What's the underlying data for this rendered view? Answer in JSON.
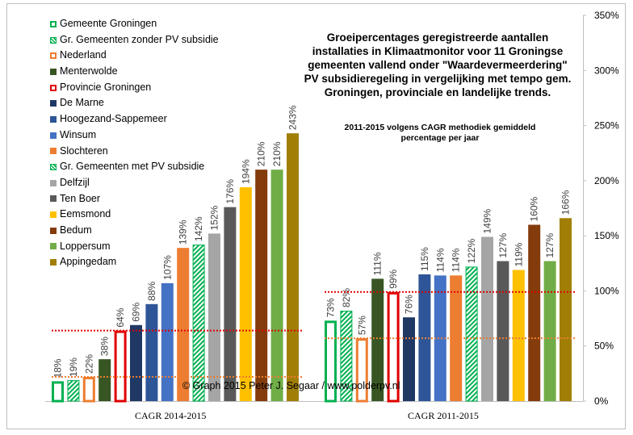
{
  "chart_data": {
    "type": "bar",
    "title": "Groeipercentages geregistreerde aantallen installaties in Klimaatmonitor voor 11 Groningse gemeenten vallend onder \"Waardevermeerdering\" PV subsidieregeling in vergelijking met tempo gem. Groningen, provinciale en landelijke trends.",
    "subtitle": "2011-2015 volgens CAGR methodiek gemiddeld percentage per jaar",
    "annotation": "© Graph 2015 Peter J. Segaar / www.polderpv.nl",
    "categories": [
      "CAGR 2014-2015",
      "CAGR 2011-2015"
    ],
    "yaxis": {
      "min": 0,
      "max": 350,
      "step": 50,
      "unit": "%",
      "position": "right"
    },
    "grid": false,
    "legend_position": "top-left",
    "series": [
      {
        "name": "Gemeente Groningen",
        "values": [
          18,
          73
        ],
        "color": "#00b050",
        "style": "outline"
      },
      {
        "name": "Gr. Gemeenten zonder PV subsidie",
        "values": [
          19,
          82
        ],
        "color": "#00b050",
        "style": "hatch"
      },
      {
        "name": "Nederland",
        "values": [
          22,
          57
        ],
        "color": "#ed7d31",
        "style": "outline"
      },
      {
        "name": "Menterwolde",
        "values": [
          38,
          111
        ],
        "color": "#375623",
        "style": "solid"
      },
      {
        "name": "Provincie Groningen",
        "values": [
          64,
          99
        ],
        "color": "#e00000",
        "style": "outline"
      },
      {
        "name": "De Marne",
        "values": [
          69,
          76
        ],
        "color": "#1f3864",
        "style": "solid"
      },
      {
        "name": "Hoogezand-Sappemeer",
        "values": [
          88,
          115
        ],
        "color": "#2e5597",
        "style": "solid"
      },
      {
        "name": "Winsum",
        "values": [
          107,
          114
        ],
        "color": "#4472c4",
        "style": "solid"
      },
      {
        "name": "Slochteren",
        "values": [
          139,
          114
        ],
        "color": "#ed7d31",
        "style": "solid"
      },
      {
        "name": "Gr. Gemeenten met PV subsidie",
        "values": [
          142,
          122
        ],
        "color": "#00b050",
        "style": "hatch"
      },
      {
        "name": "Delfzijl",
        "values": [
          152,
          149
        ],
        "color": "#a5a5a5",
        "style": "solid"
      },
      {
        "name": "Ten Boer",
        "values": [
          176,
          127
        ],
        "color": "#595959",
        "style": "solid"
      },
      {
        "name": "Eemsmond",
        "values": [
          194,
          119
        ],
        "color": "#ffc000",
        "style": "solid"
      },
      {
        "name": "Bedum",
        "values": [
          210,
          160
        ],
        "color": "#843c0c",
        "style": "solid"
      },
      {
        "name": "Loppersum",
        "values": [
          210,
          127
        ],
        "color": "#70ad47",
        "style": "solid"
      },
      {
        "name": "Appingedam",
        "values": [
          243,
          166
        ],
        "color": "#a17f07",
        "style": "solid"
      }
    ],
    "data_labels": [
      [
        "18%",
        "19%",
        "22%",
        "38%",
        "64%",
        "69%",
        "88%",
        "107%",
        "139%",
        "142%",
        "152%",
        "176%",
        "194%",
        "210%",
        "210%",
        "243%"
      ],
      [
        "73%",
        "82%",
        "57%",
        "111%",
        "99%",
        "76%",
        "115%",
        "114%",
        "114%",
        "122%",
        "149%",
        "127%",
        "119%",
        "160%",
        "127%",
        "166%"
      ]
    ],
    "reference_lines": [
      {
        "group": 0,
        "series": "Provincie Groningen",
        "value": 64,
        "color": "#e00000"
      },
      {
        "group": 0,
        "series": "Nederland",
        "value": 22,
        "color": "#ed7d31"
      },
      {
        "group": 1,
        "series": "Provincie Groningen",
        "value": 99,
        "color": "#e00000"
      },
      {
        "group": 1,
        "series": "Nederland",
        "value": 57,
        "color": "#ed7d31"
      }
    ],
    "ytick_labels": [
      "0%",
      "50%",
      "100%",
      "150%",
      "200%",
      "250%",
      "300%",
      "350%"
    ]
  }
}
